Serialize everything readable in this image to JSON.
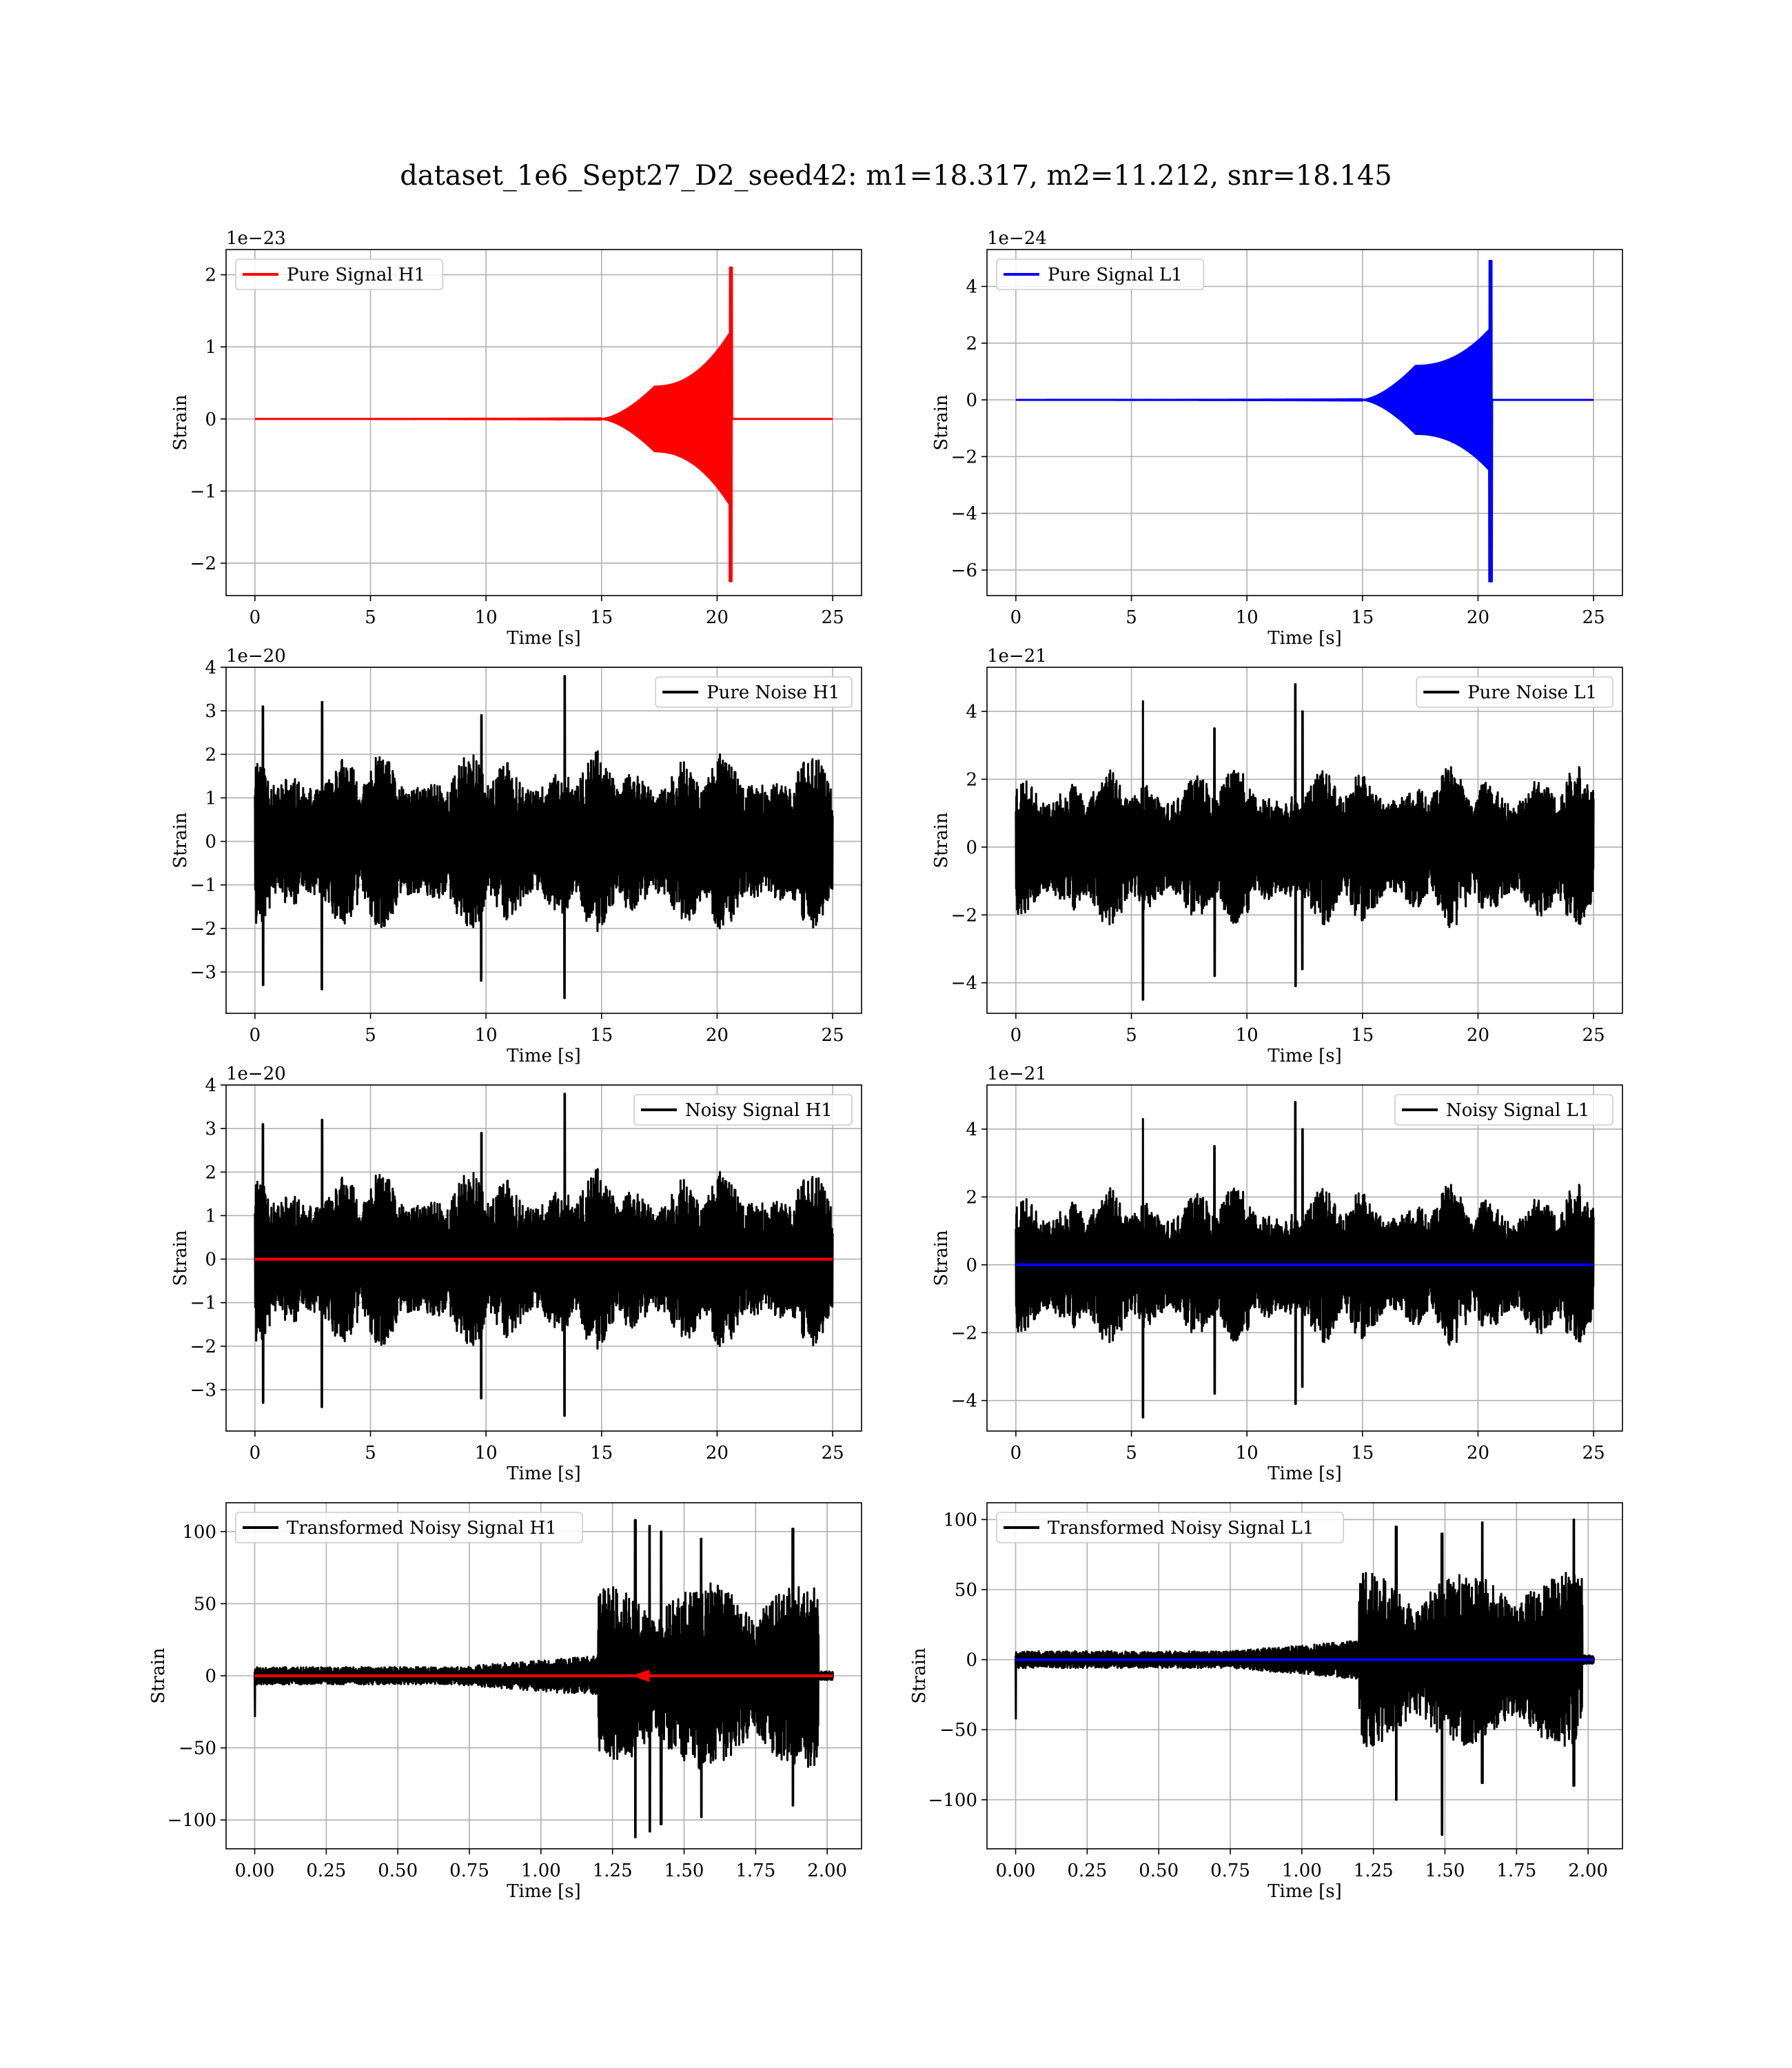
{
  "figure_title": "dataset_1e6_Sept27_D2_seed42: m1=18.317, m2=11.212, snr=18.145",
  "colors": {
    "h1_signal": "#ff0000",
    "l1_signal": "#0000ff",
    "noise": "#000000",
    "grid": "#b0b0b0"
  },
  "chart_data": [
    {
      "id": "pure-signal-h1",
      "type": "line",
      "xlabel": "Time [s]",
      "ylabel": "Strain",
      "offset_text": "1e−23",
      "xlim": [
        -1.25,
        26.25
      ],
      "ylim": [
        -2.45,
        2.35
      ],
      "xticks": [
        0,
        5,
        10,
        15,
        20,
        25
      ],
      "xtick_labels": [
        "0",
        "5",
        "10",
        "15",
        "20",
        "25"
      ],
      "yticks": [
        -2,
        -1,
        0,
        1,
        2
      ],
      "ytick_labels": [
        "−2",
        "−1",
        "0",
        "1",
        "2"
      ],
      "legend": "upper-left",
      "series": [
        {
          "name": "Pure Signal H1",
          "color": "#ff0000",
          "kind": "chirp",
          "t_end": 25,
          "merger": 20.65,
          "shoulder_t": [
            15,
            17.3
          ],
          "shoulder_amp": 0.45,
          "pre_merger_amp": 1.2,
          "peak_pos": 2.1,
          "peak_neg": -2.25
        }
      ]
    },
    {
      "id": "pure-signal-l1",
      "type": "line",
      "xlabel": "Time [s]",
      "ylabel": "Strain",
      "offset_text": "1e−24",
      "xlim": [
        -1.25,
        26.25
      ],
      "ylim": [
        -6.9,
        5.3
      ],
      "xticks": [
        0,
        5,
        10,
        15,
        20,
        25
      ],
      "xtick_labels": [
        "0",
        "5",
        "10",
        "15",
        "20",
        "25"
      ],
      "yticks": [
        -6,
        -4,
        -2,
        0,
        2,
        4
      ],
      "ytick_labels": [
        "−6",
        "−4",
        "−2",
        "0",
        "2",
        "4"
      ],
      "legend": "upper-left",
      "series": [
        {
          "name": "Pure Signal L1",
          "color": "#0000ff",
          "kind": "chirp",
          "t_end": 25,
          "merger": 20.6,
          "shoulder_t": [
            15,
            17.3
          ],
          "shoulder_amp": 1.2,
          "pre_merger_amp": 2.5,
          "peak_pos": 4.9,
          "peak_neg": -6.4
        }
      ]
    },
    {
      "id": "pure-noise-h1",
      "type": "line",
      "xlabel": "Time [s]",
      "ylabel": "Strain",
      "offset_text": "1e−20",
      "xlim": [
        -1.25,
        26.25
      ],
      "ylim": [
        -3.95,
        4.0
      ],
      "xticks": [
        0,
        5,
        10,
        15,
        20,
        25
      ],
      "xtick_labels": [
        "0",
        "5",
        "10",
        "15",
        "20",
        "25"
      ],
      "yticks": [
        -3,
        -2,
        -1,
        0,
        1,
        2,
        3,
        4
      ],
      "ytick_labels": [
        "−3",
        "−2",
        "−1",
        "0",
        "1",
        "2",
        "3",
        "4"
      ],
      "legend": "upper-right",
      "series": [
        {
          "name": "Pure Noise H1",
          "color": "#000000",
          "kind": "noise",
          "t_end": 25,
          "amp": 2.1,
          "seed": 11,
          "spikes": [
            [
              0.35,
              3.1,
              -3.3
            ],
            [
              2.9,
              3.2,
              -3.4
            ],
            [
              13.4,
              3.8,
              -3.6
            ],
            [
              9.8,
              2.9,
              -3.2
            ]
          ]
        }
      ]
    },
    {
      "id": "pure-noise-l1",
      "type": "line",
      "xlabel": "Time [s]",
      "ylabel": "Strain",
      "offset_text": "1e−21",
      "xlim": [
        -1.25,
        26.25
      ],
      "ylim": [
        -4.9,
        5.3
      ],
      "xticks": [
        0,
        5,
        10,
        15,
        20,
        25
      ],
      "xtick_labels": [
        "0",
        "5",
        "10",
        "15",
        "20",
        "25"
      ],
      "yticks": [
        -4,
        -2,
        0,
        2,
        4
      ],
      "ytick_labels": [
        "−4",
        "−2",
        "0",
        "2",
        "4"
      ],
      "legend": "upper-right",
      "series": [
        {
          "name": "Pure Noise L1",
          "color": "#000000",
          "kind": "noise",
          "t_end": 25,
          "amp": 2.4,
          "seed": 23,
          "spikes": [
            [
              5.5,
              4.3,
              -4.5
            ],
            [
              12.1,
              4.8,
              -4.1
            ],
            [
              12.4,
              4.0,
              -3.6
            ],
            [
              8.6,
              3.5,
              -3.8
            ]
          ]
        }
      ]
    },
    {
      "id": "noisy-signal-h1",
      "type": "line",
      "xlabel": "Time [s]",
      "ylabel": "Strain",
      "offset_text": "1e−20",
      "xlim": [
        -1.25,
        26.25
      ],
      "ylim": [
        -3.95,
        4.0
      ],
      "xticks": [
        0,
        5,
        10,
        15,
        20,
        25
      ],
      "xtick_labels": [
        "0",
        "5",
        "10",
        "15",
        "20",
        "25"
      ],
      "yticks": [
        -3,
        -2,
        -1,
        0,
        1,
        2,
        3,
        4
      ],
      "ytick_labels": [
        "−3",
        "−2",
        "−1",
        "0",
        "1",
        "2",
        "3",
        "4"
      ],
      "legend": "upper-right",
      "series": [
        {
          "name": "Noisy Signal H1",
          "color": "#000000",
          "kind": "noise",
          "t_end": 25,
          "amp": 2.1,
          "seed": 11,
          "spikes": [
            [
              0.35,
              3.1,
              -3.3
            ],
            [
              2.9,
              3.2,
              -3.4
            ],
            [
              13.4,
              3.8,
              -3.6
            ],
            [
              9.8,
              2.9,
              -3.2
            ]
          ]
        },
        {
          "name": "",
          "color": "#ff0000",
          "kind": "flat",
          "t_end": 25,
          "value": 0
        }
      ]
    },
    {
      "id": "noisy-signal-l1",
      "type": "line",
      "xlabel": "Time [s]",
      "ylabel": "Strain",
      "offset_text": "1e−21",
      "xlim": [
        -1.25,
        26.25
      ],
      "ylim": [
        -4.9,
        5.3
      ],
      "xticks": [
        0,
        5,
        10,
        15,
        20,
        25
      ],
      "xtick_labels": [
        "0",
        "5",
        "10",
        "15",
        "20",
        "25"
      ],
      "yticks": [
        -4,
        -2,
        0,
        2,
        4
      ],
      "ytick_labels": [
        "−4",
        "−2",
        "0",
        "2",
        "4"
      ],
      "legend": "upper-right",
      "series": [
        {
          "name": "Noisy Signal L1",
          "color": "#000000",
          "kind": "noise",
          "t_end": 25,
          "amp": 2.4,
          "seed": 23,
          "spikes": [
            [
              5.5,
              4.3,
              -4.5
            ],
            [
              12.1,
              4.8,
              -4.1
            ],
            [
              12.4,
              4.0,
              -3.6
            ],
            [
              8.6,
              3.5,
              -3.8
            ]
          ]
        },
        {
          "name": "",
          "color": "#0000ff",
          "kind": "flat",
          "t_end": 25,
          "value": 0
        }
      ]
    },
    {
      "id": "transformed-noisy-signal-h1",
      "type": "line",
      "xlabel": "Time [s]",
      "ylabel": "Strain",
      "offset_text": "",
      "xlim": [
        -0.1,
        2.12
      ],
      "ylim": [
        -120,
        120
      ],
      "xticks": [
        0,
        0.25,
        0.5,
        0.75,
        1.0,
        1.25,
        1.5,
        1.75,
        2.0
      ],
      "xtick_labels": [
        "0.00",
        "0.25",
        "0.50",
        "0.75",
        "1.00",
        "1.25",
        "1.50",
        "1.75",
        "2.00"
      ],
      "yticks": [
        -100,
        -50,
        0,
        50,
        100
      ],
      "ytick_labels": [
        "−100",
        "−50",
        "0",
        "50",
        "100"
      ],
      "legend": "upper-left",
      "series": [
        {
          "name": "Transformed Noisy Signal H1",
          "color": "#000000",
          "kind": "whitened",
          "t_end": 2.02,
          "seed": 7,
          "quiet_amp": 6,
          "ramp_t": [
            0.7,
            1.2
          ],
          "ramp_amp": 14,
          "loud_t": [
            1.2,
            1.97
          ],
          "loud_amp": 65,
          "start_dip": -28,
          "spikes": [
            [
              1.33,
              108,
              -112
            ],
            [
              1.38,
              104,
              -108
            ],
            [
              1.42,
              100,
              -103
            ],
            [
              1.56,
              95,
              -98
            ],
            [
              1.88,
              102,
              -90
            ]
          ]
        },
        {
          "name": "",
          "color": "#ff0000",
          "kind": "flat",
          "t_end": 2.02,
          "value": 0,
          "marker_t": 1.37
        }
      ]
    },
    {
      "id": "transformed-noisy-signal-l1",
      "type": "line",
      "xlabel": "Time [s]",
      "ylabel": "Strain",
      "offset_text": "",
      "xlim": [
        -0.1,
        2.12
      ],
      "ylim": [
        -135,
        112
      ],
      "xticks": [
        0,
        0.25,
        0.5,
        0.75,
        1.0,
        1.25,
        1.5,
        1.75,
        2.0
      ],
      "xtick_labels": [
        "0.00",
        "0.25",
        "0.50",
        "0.75",
        "1.00",
        "1.25",
        "1.50",
        "1.75",
        "2.00"
      ],
      "yticks": [
        -100,
        -50,
        0,
        50,
        100
      ],
      "ytick_labels": [
        "−100",
        "−50",
        "0",
        "50",
        "100"
      ],
      "legend": "upper-left",
      "series": [
        {
          "name": "Transformed Noisy Signal L1",
          "color": "#000000",
          "kind": "whitened",
          "t_end": 2.02,
          "seed": 19,
          "quiet_amp": 6,
          "ramp_t": [
            0.75,
            1.2
          ],
          "ramp_amp": 14,
          "loud_t": [
            1.2,
            1.98
          ],
          "loud_amp": 62,
          "start_dip": -42,
          "spikes": [
            [
              1.49,
              90,
              -125
            ],
            [
              1.33,
              95,
              -100
            ],
            [
              1.63,
              98,
              -88
            ],
            [
              1.95,
              100,
              -90
            ]
          ]
        },
        {
          "name": "",
          "color": "#0000ff",
          "kind": "flat",
          "t_end": 2.02,
          "value": 0
        }
      ]
    }
  ]
}
